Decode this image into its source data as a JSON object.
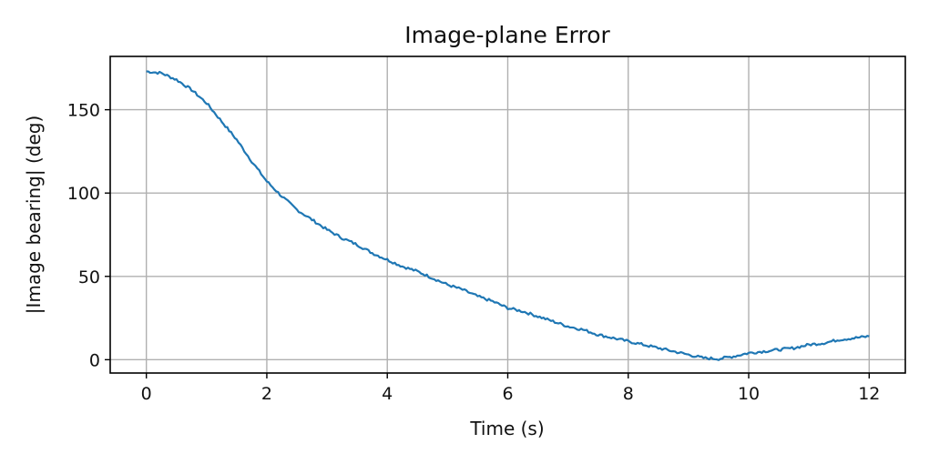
{
  "chart_data": {
    "type": "line",
    "title": "Image-plane Error",
    "xlabel": "Time (s)",
    "ylabel": "|Image bearing| (deg)",
    "xlim": [
      -0.6,
      12.6
    ],
    "ylim": [
      -8,
      182
    ],
    "xticks": [
      0,
      2,
      4,
      6,
      8,
      10,
      12
    ],
    "yticks": [
      0,
      50,
      100,
      150
    ],
    "grid": true,
    "line_color": "#1f77b4",
    "series": [
      {
        "x": [
          0,
          0.25,
          0.5,
          0.75,
          1.0,
          1.25,
          1.5,
          1.75,
          2.0,
          2.25,
          2.5,
          2.75,
          3.0,
          3.25,
          3.5,
          3.75,
          4.0,
          4.25,
          4.5,
          4.75,
          5.0,
          5.25,
          5.5,
          5.75,
          6.0,
          6.25,
          6.5,
          6.75,
          7.0,
          7.25,
          7.5,
          7.75,
          8.0,
          8.25,
          8.5,
          8.75,
          9.0,
          9.25,
          9.5,
          9.75,
          10.0,
          10.25,
          10.5,
          10.75,
          11.0,
          11.25,
          11.5,
          11.75,
          12.0
        ],
        "y": [
          173,
          172,
          168,
          162,
          154,
          143,
          132,
          119,
          107,
          98,
          90,
          84,
          78,
          73,
          69,
          64,
          60,
          56,
          53,
          49,
          45,
          42,
          38,
          35,
          31,
          29,
          26,
          23,
          20,
          18,
          15,
          13,
          11,
          9,
          7,
          5,
          3,
          1,
          0.5,
          2,
          4,
          5,
          6,
          7,
          9,
          10,
          12,
          13,
          14
        ]
      }
    ]
  }
}
